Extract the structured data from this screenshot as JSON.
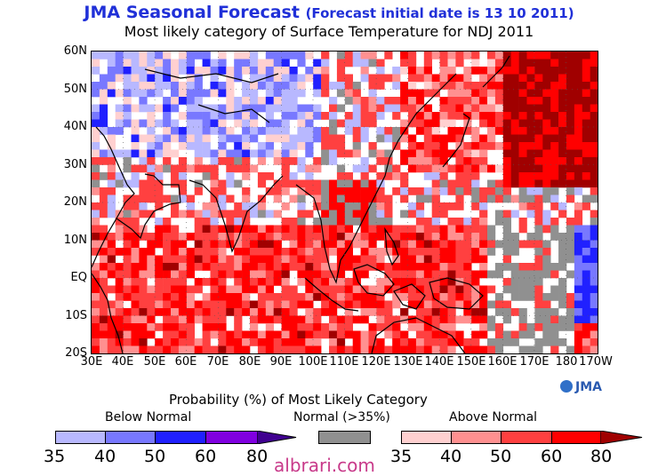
{
  "title_main": "JMA Seasonal Forecast",
  "title_sub": "(Forecast initial date is 13 10 2011)",
  "subtitle": "Most likely category of Surface Temperature for NDJ 2011",
  "y_ticks": [
    "60N",
    "50N",
    "40N",
    "30N",
    "20N",
    "10N",
    "EQ",
    "10S",
    "20S"
  ],
  "x_ticks": [
    "30E",
    "40E",
    "50E",
    "60E",
    "70E",
    "80E",
    "90E",
    "100E",
    "110E",
    "120E",
    "130E",
    "140E",
    "150E",
    "160E",
    "170E",
    "180",
    "170W"
  ],
  "probability_title": "Probability (%) of Most Likely Category",
  "legend": {
    "below_label": "Below Normal",
    "normal_label": "Normal (>35%)",
    "above_label": "Above Normal",
    "below_ticks": [
      "35",
      "40",
      "50",
      "60",
      "80"
    ],
    "above_ticks": [
      "35",
      "40",
      "50",
      "60",
      "80"
    ],
    "below_colors": [
      "#b8b8ff",
      "#7878ff",
      "#2020ff",
      "#8000e0",
      "#400090"
    ],
    "normal_color": "#909090",
    "above_colors": [
      "#ffd0d0",
      "#ff9090",
      "#ff4040",
      "#ff0000",
      "#a00000"
    ]
  },
  "logo": "JMA",
  "watermark": "albrari.com"
}
